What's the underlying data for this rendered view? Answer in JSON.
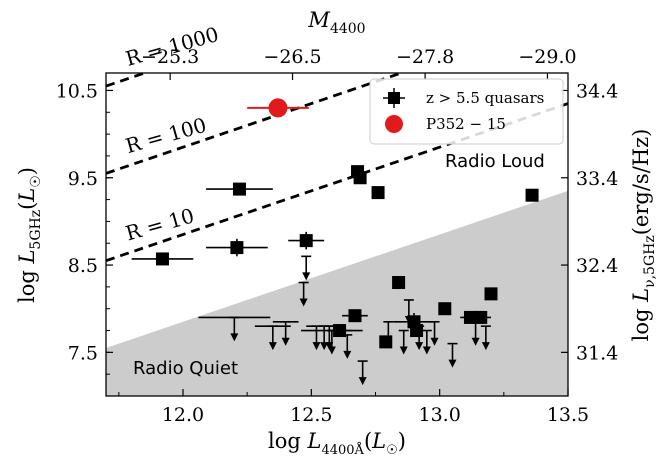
{
  "chart_data": {
    "type": "scatter",
    "xlabel": "log L_4400Å(L☉)",
    "ylabel": "log L_5GHz(L☉)",
    "top_xlabel": "M_4400",
    "right_ylabel": "log L_ν,5GHz(erg/s/Hz)",
    "xlim": [
      11.7,
      13.5
    ],
    "ylim": [
      7.0,
      10.7
    ],
    "x_ticks": [
      12.0,
      12.5,
      13.0,
      13.5
    ],
    "x_tick_labels": [
      "12.0",
      "12.5",
      "13.0",
      "13.5"
    ],
    "y_ticks": [
      7.5,
      8.5,
      9.5,
      10.5
    ],
    "y_tick_labels": [
      "7.5",
      "8.5",
      "9.5",
      "10.5"
    ],
    "top_ticks": [
      -25.3,
      -26.5,
      -27.8,
      -29.0
    ],
    "top_tick_labels": [
      "−25.3",
      "−26.5",
      "−27.8",
      "−29.0"
    ],
    "right_ticks": [
      31.4,
      32.4,
      33.4,
      34.4
    ],
    "right_tick_labels": [
      "31.4",
      "32.4",
      "33.4",
      "34.4"
    ],
    "regions": {
      "radio_loud": "Radio Loud",
      "radio_quiet": "Radio Quiet"
    },
    "ratio_lines": [
      {
        "label": "R = 1000",
        "offset": 3.0
      },
      {
        "label": "R = 100",
        "offset": 2.0
      },
      {
        "label": "R = 10",
        "offset": 1.0
      }
    ],
    "legend": {
      "position": "top-right",
      "entries": [
        "z > 5.5 quasars",
        "P352 − 15"
      ]
    },
    "detections": [
      {
        "x": 11.92,
        "y": 8.57,
        "xerr": 0.12,
        "yerr": 0.0
      },
      {
        "x": 12.22,
        "y": 9.37,
        "xerr": 0.13,
        "yerr": 0.0
      },
      {
        "x": 12.21,
        "y": 8.7,
        "xerr": 0.12,
        "yerr": 0.1
      },
      {
        "x": 12.48,
        "y": 8.78,
        "xerr": 0.07,
        "yerr": 0.1
      },
      {
        "x": 12.68,
        "y": 9.57,
        "xerr": 0.0,
        "yerr": 0.0
      },
      {
        "x": 12.69,
        "y": 9.5,
        "xerr": 0.0,
        "yerr": 0.0
      },
      {
        "x": 12.76,
        "y": 9.33,
        "xerr": 0.0,
        "yerr": 0.0
      },
      {
        "x": 12.84,
        "y": 8.3,
        "xerr": 0.0,
        "yerr": 0.0
      },
      {
        "x": 12.67,
        "y": 7.92,
        "xerr": 0.05,
        "yerr": 0.0
      },
      {
        "x": 12.61,
        "y": 7.75,
        "xerr": 0.05,
        "yerr": 0.0
      },
      {
        "x": 12.79,
        "y": 7.62,
        "xerr": 0.0,
        "yerr": 0.0
      },
      {
        "x": 12.9,
        "y": 7.85,
        "xerr": 0.08,
        "yerr": 0.1
      },
      {
        "x": 12.91,
        "y": 7.75,
        "xerr": 0.0,
        "yerr": 0.0
      },
      {
        "x": 13.02,
        "y": 8.0,
        "xerr": 0.0,
        "yerr": 0.0
      },
      {
        "x": 13.12,
        "y": 7.9,
        "xerr": 0.04,
        "yerr": 0.0
      },
      {
        "x": 13.16,
        "y": 7.9,
        "xerr": 0.04,
        "yerr": 0.0
      },
      {
        "x": 13.2,
        "y": 8.17,
        "xerr": 0.0,
        "yerr": 0.0
      },
      {
        "x": 13.36,
        "y": 9.3,
        "xerr": 0.0,
        "yerr": 0.0
      }
    ],
    "upper_limits": [
      {
        "x": 12.2,
        "y": 7.9,
        "xerr": 0.14
      },
      {
        "x": 12.35,
        "y": 7.8,
        "xerr": 0.07
      },
      {
        "x": 12.4,
        "y": 7.85,
        "xerr": 0.05
      },
      {
        "x": 12.47,
        "y": 8.3,
        "xerr": 0.0
      },
      {
        "x": 12.48,
        "y": 8.6,
        "xerr": 0.0
      },
      {
        "x": 12.52,
        "y": 7.8,
        "xerr": 0.0
      },
      {
        "x": 12.55,
        "y": 7.8,
        "xerr": 0.07
      },
      {
        "x": 12.57,
        "y": 7.8,
        "xerr": 0.04
      },
      {
        "x": 12.58,
        "y": 7.75,
        "xerr": 0.12
      },
      {
        "x": 12.64,
        "y": 7.7,
        "xerr": 0.0
      },
      {
        "x": 12.7,
        "y": 7.4,
        "xerr": 0.0
      },
      {
        "x": 12.8,
        "y": 7.85,
        "xerr": 0.0
      },
      {
        "x": 12.86,
        "y": 7.75,
        "xerr": 0.0
      },
      {
        "x": 12.88,
        "y": 8.1,
        "xerr": 0.0
      },
      {
        "x": 12.92,
        "y": 7.8,
        "xerr": 0.0
      },
      {
        "x": 12.95,
        "y": 7.75,
        "xerr": 0.0
      },
      {
        "x": 12.98,
        "y": 7.85,
        "xerr": 0.0
      },
      {
        "x": 13.05,
        "y": 7.6,
        "xerr": 0.0
      },
      {
        "x": 13.14,
        "y": 7.85,
        "xerr": 0.0
      },
      {
        "x": 13.18,
        "y": 7.8,
        "xerr": 0.0
      }
    ],
    "highlight": {
      "x": 12.37,
      "y": 10.3,
      "xerr": 0.12,
      "color": "#e31a1c"
    },
    "colors": {
      "marker": "#000000",
      "highlight": "#e31a1c",
      "quiet_region": "#cccccc"
    }
  }
}
